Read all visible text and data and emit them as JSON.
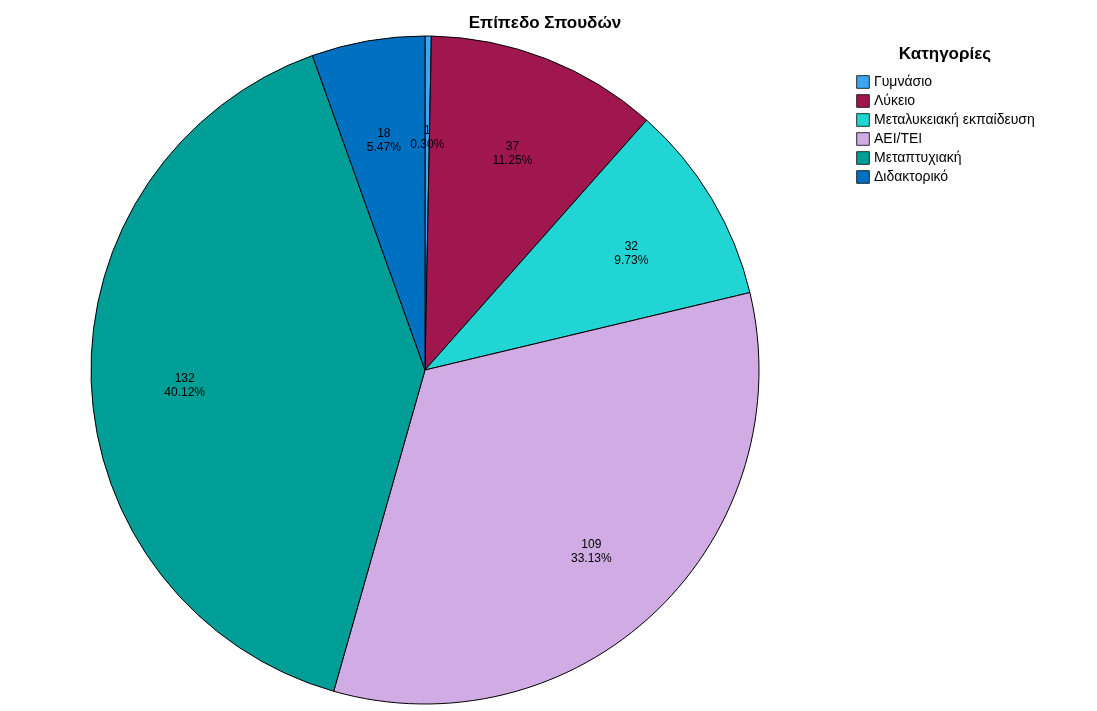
{
  "chart_data": {
    "type": "pie",
    "title": "Επίπεδο Σπουδών",
    "legend_title": "Κατηγορίες",
    "legend": "top right",
    "categories": [
      "Γυμνάσιο",
      "Λύκειο",
      "Μεταλυκειακή εκπαίδευση",
      "ΑΕΙ/ΤΕΙ",
      "Μεταπτυχιακή",
      "Διδακτορικό"
    ],
    "values": [
      1,
      37,
      32,
      109,
      132,
      18
    ],
    "colors": [
      "#3ea6f0",
      "#a0174f",
      "#22d5d5",
      "#d0abe4",
      "#009e96",
      "#0070c0"
    ],
    "value_labels": [
      "1\n0.30%",
      "37\n11.25%",
      "32\n9.73%",
      "109\n33.13%",
      "132\n40.12%",
      "18\n5.47%"
    ]
  }
}
